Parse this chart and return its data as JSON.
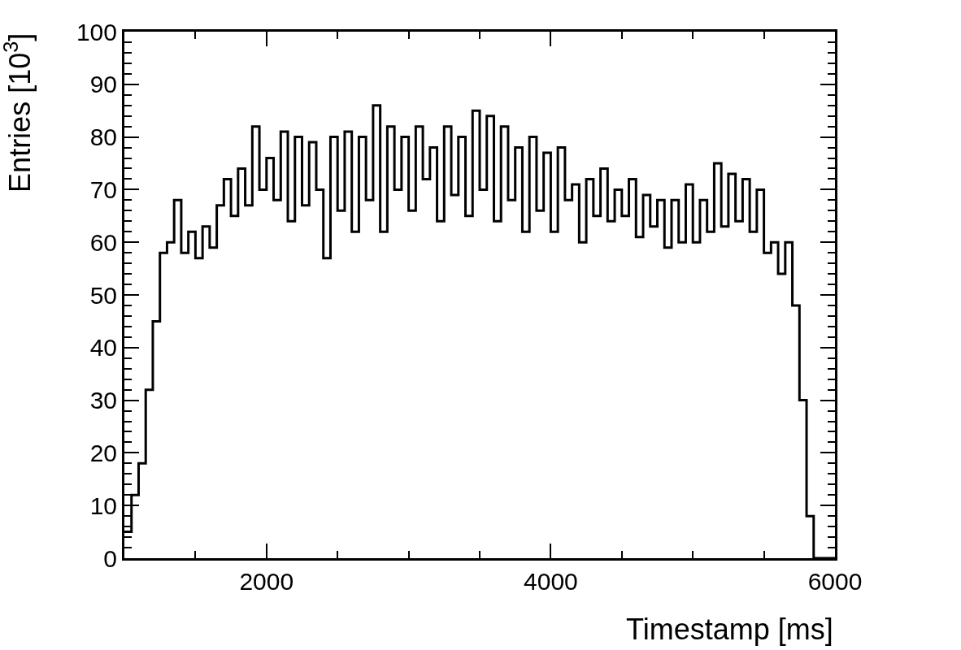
{
  "chart_data": {
    "type": "step",
    "xlabel": "Timestamp [ms]",
    "ylabel": "Entries [10$^{3}$]",
    "x": [
      1000,
      1050,
      1100,
      1150,
      1200,
      1250,
      1300,
      1350,
      1400,
      1450,
      1500,
      1550,
      1600,
      1650,
      1700,
      1750,
      1800,
      1850,
      1900,
      1950,
      2000,
      2050,
      2100,
      2150,
      2200,
      2250,
      2300,
      2350,
      2400,
      2450,
      2500,
      2550,
      2600,
      2650,
      2700,
      2750,
      2800,
      2850,
      2900,
      2950,
      3000,
      3050,
      3100,
      3150,
      3200,
      3250,
      3300,
      3350,
      3400,
      3450,
      3500,
      3550,
      3600,
      3650,
      3700,
      3750,
      3800,
      3850,
      3900,
      3950,
      4000,
      4050,
      4100,
      4150,
      4200,
      4250,
      4300,
      4350,
      4400,
      4450,
      4500,
      4550,
      4600,
      4650,
      4700,
      4750,
      4800,
      4850,
      4900,
      4950,
      5000,
      5050,
      5100,
      5150,
      5200,
      5250,
      5300,
      5350,
      5400,
      5450,
      5500,
      5550,
      5600,
      5650,
      5700,
      5750,
      5800,
      5850,
      5900,
      5950,
      6000
    ],
    "series": [
      {
        "color": "#000000",
        "values": [
          5,
          12,
          18,
          32,
          45,
          58,
          60,
          68,
          58,
          62,
          57,
          63,
          59,
          67,
          72,
          65,
          74,
          67,
          82,
          70,
          76,
          68,
          81,
          64,
          80,
          67,
          79,
          70,
          57,
          80,
          66,
          81,
          62,
          80,
          68,
          86,
          62,
          82,
          70,
          80,
          66,
          82,
          72,
          78,
          64,
          82,
          69,
          80,
          65,
          85,
          70,
          84,
          64,
          82,
          68,
          78,
          62,
          80,
          66,
          77,
          62,
          78,
          68,
          71,
          60,
          72,
          65,
          74,
          64,
          70,
          65,
          72,
          61,
          69,
          63,
          68,
          59,
          68,
          60,
          71,
          60,
          68,
          62,
          75,
          63,
          73,
          64,
          72,
          62,
          70,
          58,
          60,
          54,
          60,
          48,
          30,
          8,
          0,
          0,
          0,
          0
        ]
      }
    ],
    "xlim": [
      1000,
      6000
    ],
    "xticks": [
      2000,
      4000,
      6000
    ],
    "ylim": [
      0,
      100
    ],
    "yticks": [
      0,
      10,
      20,
      30,
      40,
      50,
      60,
      70,
      80,
      90,
      100
    ],
    "line_style": "solid"
  }
}
